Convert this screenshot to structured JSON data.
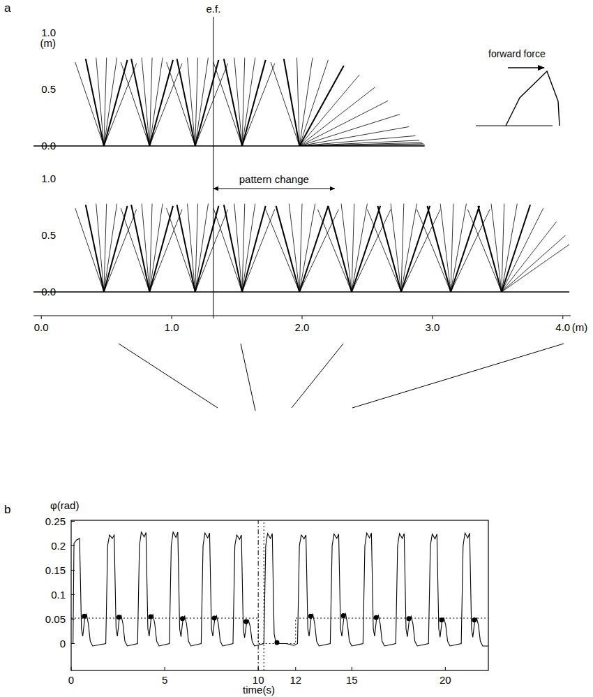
{
  "chart_data": [
    {
      "type": "stick",
      "panel_label": "a",
      "color": "#000000",
      "xlim": [
        -0.06,
        4.06
      ],
      "ylim": [
        0,
        1.0
      ],
      "yticks": [
        {
          "value": 0,
          "label": "0.0"
        },
        {
          "value": 0.5,
          "label": "0.5"
        },
        {
          "value": 1,
          "label": "1.0"
        }
      ],
      "y_label": "(m)",
      "tick_labels": "y",
      "annotations": [
        {
          "text": "e.f.",
          "x": 1.32
        },
        {
          "text": "forward force"
        }
      ],
      "steps": [
        {
          "foot": 0.48,
          "hips": [
            [
              0.26,
              0.74
            ],
            [
              0.34,
              0.77
            ],
            [
              0.42,
              0.78
            ],
            [
              0.5,
              0.78
            ],
            [
              0.58,
              0.78
            ],
            [
              0.66,
              0.76
            ],
            [
              0.73,
              0.73
            ]
          ]
        },
        {
          "foot": 0.83,
          "hips": [
            [
              0.61,
              0.74
            ],
            [
              0.69,
              0.77
            ],
            [
              0.77,
              0.78
            ],
            [
              0.85,
              0.78
            ],
            [
              0.93,
              0.78
            ],
            [
              1.01,
              0.76
            ],
            [
              1.08,
              0.73
            ]
          ]
        },
        {
          "foot": 1.18,
          "hips": [
            [
              0.96,
              0.74
            ],
            [
              1.04,
              0.77
            ],
            [
              1.12,
              0.78
            ],
            [
              1.2,
              0.78
            ],
            [
              1.28,
              0.78
            ],
            [
              1.36,
              0.76
            ],
            [
              1.43,
              0.73
            ]
          ]
        },
        {
          "foot": 1.54,
          "hips": [
            [
              1.32,
              0.74
            ],
            [
              1.4,
              0.77
            ],
            [
              1.48,
              0.78
            ],
            [
              1.56,
              0.78
            ],
            [
              1.64,
              0.78
            ],
            [
              1.72,
              0.76
            ],
            [
              1.79,
              0.73
            ]
          ]
        },
        {
          "foot": 1.98,
          "hips": [
            [
              1.76,
              0.74
            ],
            [
              1.86,
              0.77
            ],
            [
              1.96,
              0.78
            ],
            [
              2.08,
              0.78
            ],
            [
              2.2,
              0.76
            ],
            [
              2.32,
              0.71
            ],
            [
              2.44,
              0.63
            ],
            [
              2.56,
              0.52
            ],
            [
              2.66,
              0.4
            ],
            [
              2.75,
              0.28
            ],
            [
              2.82,
              0.17
            ],
            [
              2.87,
              0.09
            ],
            [
              2.9,
              0.05
            ],
            [
              2.92,
              0.03
            ],
            [
              2.93,
              0.02
            ],
            [
              2.94,
              0.01
            ]
          ]
        }
      ]
    },
    {
      "type": "stick",
      "color": "#000000",
      "xlim": [
        -0.06,
        4.06
      ],
      "ylim": [
        0,
        1.0
      ],
      "yticks": [
        {
          "value": 0,
          "label": "0.0"
        },
        {
          "value": 0.5,
          "label": "0.5"
        },
        {
          "value": 1,
          "label": "1.0"
        }
      ],
      "xticks": [
        {
          "value": 0,
          "label": "0.0"
        },
        {
          "value": 1,
          "label": "1.0"
        },
        {
          "value": 2,
          "label": "2.0"
        },
        {
          "value": 3,
          "label": "3.0"
        },
        {
          "value": 4,
          "label": "4.0"
        }
      ],
      "x_label": "(m)",
      "annotations": [
        {
          "text": "pattern change",
          "x": [
            1.32,
            2.25
          ]
        }
      ],
      "steps": [
        {
          "foot": 0.48,
          "hips": [
            [
              0.26,
              0.74
            ],
            [
              0.34,
              0.77
            ],
            [
              0.42,
              0.78
            ],
            [
              0.5,
              0.78
            ],
            [
              0.58,
              0.78
            ],
            [
              0.66,
              0.76
            ],
            [
              0.73,
              0.73
            ]
          ]
        },
        {
          "foot": 0.83,
          "hips": [
            [
              0.61,
              0.74
            ],
            [
              0.69,
              0.77
            ],
            [
              0.77,
              0.78
            ],
            [
              0.85,
              0.78
            ],
            [
              0.93,
              0.78
            ],
            [
              1.01,
              0.76
            ],
            [
              1.08,
              0.73
            ]
          ]
        },
        {
          "foot": 1.18,
          "hips": [
            [
              0.96,
              0.74
            ],
            [
              1.04,
              0.77
            ],
            [
              1.12,
              0.78
            ],
            [
              1.2,
              0.78
            ],
            [
              1.28,
              0.78
            ],
            [
              1.36,
              0.76
            ],
            [
              1.43,
              0.73
            ]
          ]
        },
        {
          "foot": 1.54,
          "hips": [
            [
              1.32,
              0.74
            ],
            [
              1.4,
              0.77
            ],
            [
              1.48,
              0.78
            ],
            [
              1.56,
              0.78
            ],
            [
              1.64,
              0.78
            ],
            [
              1.72,
              0.76
            ],
            [
              1.79,
              0.73
            ]
          ]
        },
        {
          "foot": 1.98,
          "hips": [
            [
              1.72,
              0.73
            ],
            [
              1.8,
              0.76
            ],
            [
              1.9,
              0.78
            ],
            [
              2.0,
              0.78
            ],
            [
              2.1,
              0.78
            ],
            [
              2.2,
              0.76
            ],
            [
              2.28,
              0.73
            ]
          ]
        },
        {
          "foot": 2.38,
          "hips": [
            [
              2.12,
              0.73
            ],
            [
              2.2,
              0.76
            ],
            [
              2.3,
              0.78
            ],
            [
              2.4,
              0.78
            ],
            [
              2.5,
              0.78
            ],
            [
              2.6,
              0.76
            ],
            [
              2.68,
              0.73
            ]
          ]
        },
        {
          "foot": 2.76,
          "hips": [
            [
              2.5,
              0.73
            ],
            [
              2.58,
              0.76
            ],
            [
              2.68,
              0.78
            ],
            [
              2.78,
              0.78
            ],
            [
              2.88,
              0.78
            ],
            [
              2.98,
              0.76
            ],
            [
              3.06,
              0.73
            ]
          ]
        },
        {
          "foot": 3.14,
          "hips": [
            [
              2.88,
              0.73
            ],
            [
              2.96,
              0.76
            ],
            [
              3.06,
              0.78
            ],
            [
              3.16,
              0.78
            ],
            [
              3.26,
              0.78
            ],
            [
              3.36,
              0.76
            ],
            [
              3.44,
              0.73
            ]
          ]
        },
        {
          "foot": 3.53,
          "hips": [
            [
              3.27,
              0.73
            ],
            [
              3.35,
              0.76
            ],
            [
              3.45,
              0.78
            ],
            [
              3.55,
              0.78
            ],
            [
              3.65,
              0.78
            ],
            [
              3.75,
              0.77
            ],
            [
              3.85,
              0.74
            ],
            [
              3.95,
              0.62
            ],
            [
              4.02,
              0.5
            ],
            [
              4.05,
              0.42
            ]
          ]
        }
      ]
    },
    {
      "type": "line",
      "panel_label": "b",
      "xlim": [
        0,
        22.3
      ],
      "ylim": [
        -0.055,
        0.252
      ],
      "xticks": [
        0,
        5,
        10,
        12,
        15,
        20
      ],
      "yticks": [
        0,
        0.05,
        0.1,
        0.15,
        0.2,
        0.25
      ],
      "x_label": "time(s)",
      "y_label": "φ(rad)",
      "series": [
        {
          "color": "#000000",
          "line_style": "solid",
          "x": [
            0,
            0.1,
            0.15,
            0.3,
            0.45,
            0.55,
            0.62,
            0.72,
            0.82,
            0.92,
            1.02,
            1.15,
            1.85,
            1.95,
            2.05,
            2.2,
            2.3,
            2.4,
            2.47,
            2.57,
            2.67,
            2.77,
            2.87,
            3.0,
            3.55,
            3.65,
            3.75,
            3.9,
            4.0,
            4.1,
            4.17,
            4.27,
            4.37,
            4.47,
            4.57,
            4.7,
            5.25,
            5.35,
            5.45,
            5.6,
            5.7,
            5.8,
            5.87,
            5.97,
            6.07,
            6.17,
            6.27,
            6.4,
            6.95,
            7.05,
            7.15,
            7.3,
            7.4,
            7.5,
            7.57,
            7.67,
            7.77,
            7.87,
            7.97,
            8.1,
            8.65,
            8.75,
            8.85,
            9.0,
            9.1,
            9.2,
            9.27,
            9.37,
            9.47,
            9.57,
            9.67,
            9.8,
            10.3,
            10.4,
            10.5,
            10.65,
            10.75,
            10.85,
            10.95,
            11.5,
            11.9,
            12.1,
            12.2,
            12.3,
            12.45,
            12.55,
            12.65,
            12.72,
            12.82,
            12.92,
            13.02,
            13.12,
            13.25,
            13.85,
            13.95,
            14.05,
            14.2,
            14.3,
            14.4,
            14.47,
            14.57,
            14.67,
            14.77,
            14.87,
            15.0,
            15.6,
            15.7,
            15.8,
            15.95,
            16.05,
            16.15,
            16.22,
            16.32,
            16.42,
            16.52,
            16.62,
            16.75,
            17.35,
            17.45,
            17.55,
            17.7,
            17.8,
            17.9,
            17.97,
            18.07,
            18.17,
            18.27,
            18.37,
            18.5,
            19.1,
            19.2,
            19.3,
            19.45,
            19.55,
            19.65,
            19.72,
            19.82,
            19.92,
            20.02,
            20.12,
            20.25,
            20.85,
            20.95,
            21.05,
            21.2,
            21.3,
            21.4,
            21.47,
            21.57,
            21.67,
            21.77,
            21.87,
            22.0,
            22.3
          ],
          "values": [
            0,
            0,
            0.205,
            0.212,
            0.215,
            0.03,
            0.015,
            0.05,
            0.06,
            0.04,
            0.005,
            -0.005,
            0,
            0.2,
            0.222,
            0.215,
            0.222,
            0.03,
            0.015,
            0.05,
            0.058,
            0.04,
            0.005,
            -0.005,
            0,
            0.2,
            0.228,
            0.218,
            0.227,
            0.03,
            0.015,
            0.05,
            0.059,
            0.04,
            0.005,
            -0.005,
            0,
            0.2,
            0.228,
            0.217,
            0.228,
            0.03,
            0.014,
            0.048,
            0.056,
            0.04,
            0.005,
            -0.005,
            0,
            0.2,
            0.226,
            0.216,
            0.226,
            0.03,
            0.015,
            0.049,
            0.057,
            0.04,
            0.005,
            -0.005,
            0,
            0.2,
            0.222,
            0.213,
            0.222,
            0.03,
            0.012,
            0.04,
            0.048,
            0.035,
            0.005,
            -0.005,
            0,
            0.2,
            0.225,
            0.215,
            0.225,
            0.02,
            0,
            0,
            -0.004,
            0,
            0.2,
            0.222,
            0.214,
            0.222,
            0.03,
            0.015,
            0.05,
            0.06,
            0.04,
            0.005,
            -0.005,
            0,
            0.2,
            0.224,
            0.215,
            0.224,
            0.03,
            0.015,
            0.051,
            0.061,
            0.04,
            0.005,
            -0.005,
            0,
            0.2,
            0.226,
            0.216,
            0.226,
            0.03,
            0.015,
            0.05,
            0.058,
            0.04,
            0.005,
            -0.005,
            0,
            0.2,
            0.225,
            0.215,
            0.225,
            0.03,
            0.014,
            0.048,
            0.056,
            0.04,
            0.005,
            -0.005,
            0,
            0.2,
            0.224,
            0.214,
            0.224,
            0.03,
            0.013,
            0.045,
            0.052,
            0.038,
            0.005,
            -0.005,
            0,
            0.2,
            0.226,
            0.216,
            0.226,
            0.03,
            0.013,
            0.045,
            0.052,
            0.038,
            0.005,
            -0.005,
            -0.005
          ]
        },
        {
          "type": "scatter",
          "marker": "circle",
          "color": "#000000",
          "x": [
            0.7,
            2.55,
            4.25,
            5.95,
            7.65,
            9.35,
            11.0,
            12.8,
            14.55,
            16.3,
            18.05,
            19.8,
            21.55
          ],
          "values": [
            0.056,
            0.054,
            0.055,
            0.051,
            0.052,
            0.045,
            0.002,
            0.056,
            0.057,
            0.053,
            0.051,
            0.048,
            0.048
          ]
        },
        {
          "color": "#000000",
          "line_style": "dotted",
          "x": [
            0,
            10,
            10,
            12,
            12,
            22.3
          ],
          "values": [
            0.052,
            0.052,
            0,
            0,
            0.052,
            0.052
          ]
        },
        {
          "color": "#000000",
          "line_style": "dashdot",
          "x": [
            10,
            10
          ],
          "values": [
            -0.055,
            0.252
          ]
        },
        {
          "color": "#000000",
          "line_style": "dotted",
          "x": [
            10.3,
            10.3
          ],
          "values": [
            -0.055,
            0.252
          ]
        }
      ]
    }
  ]
}
